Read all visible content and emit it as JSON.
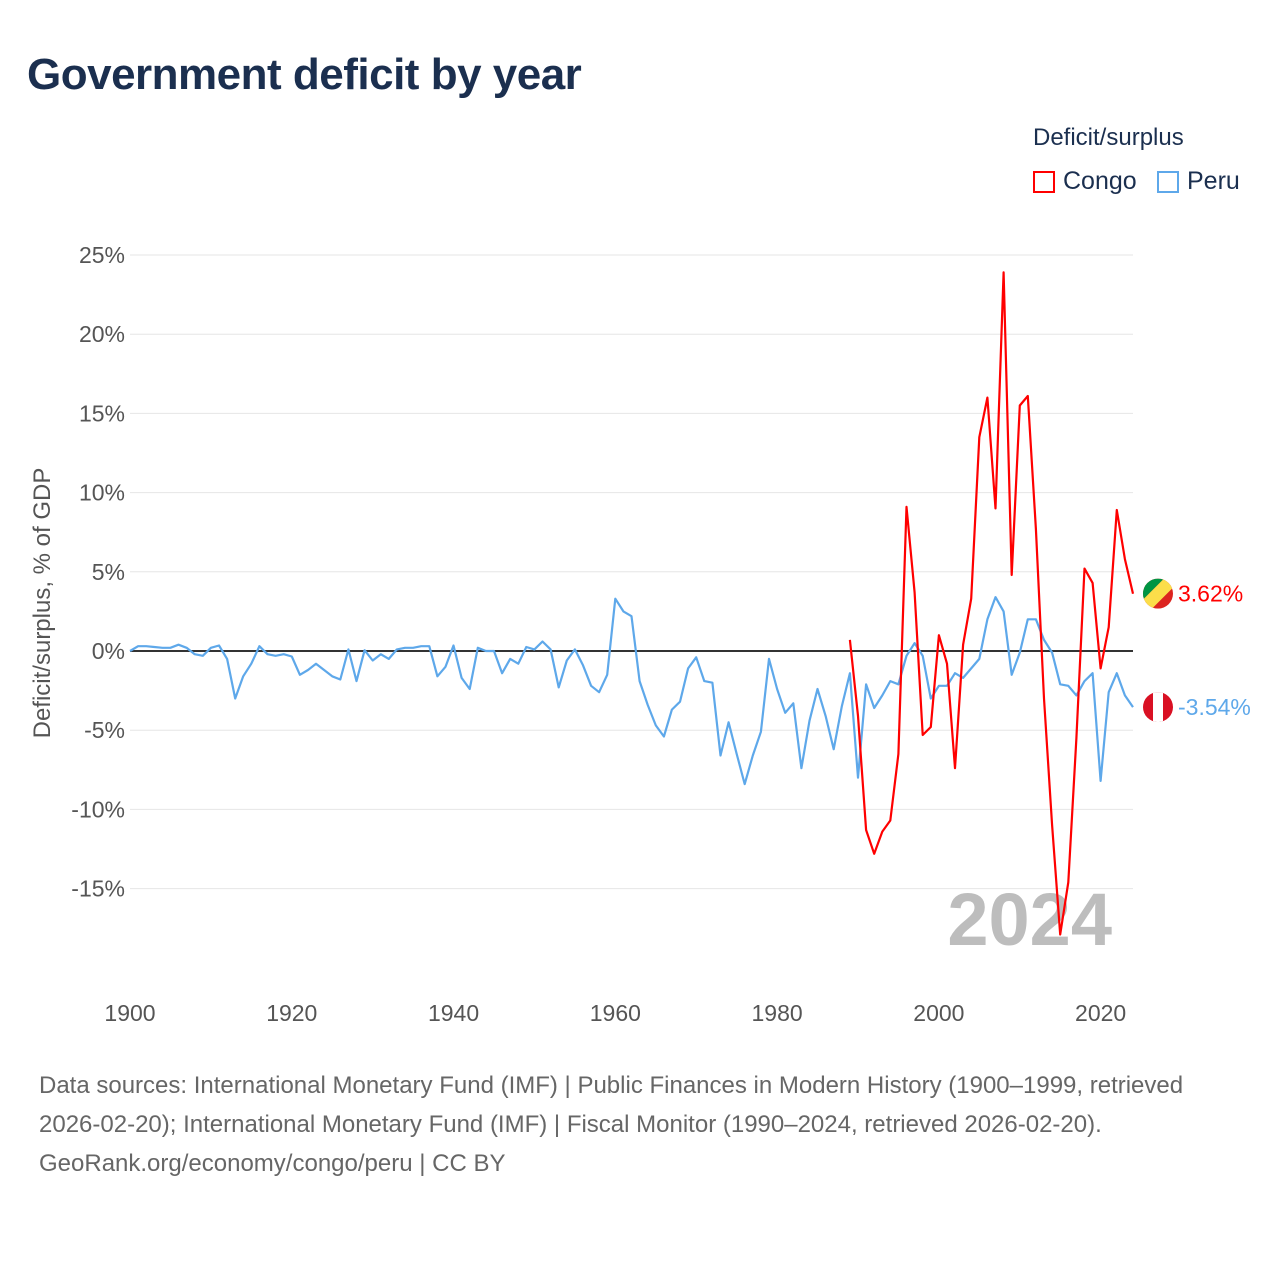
{
  "title": "Government deficit by year",
  "legend": {
    "title": "Deficit/surplus",
    "items": [
      {
        "label": "Congo",
        "color": "#ff0000"
      },
      {
        "label": "Peru",
        "color": "#5ea8ea"
      }
    ]
  },
  "footer": {
    "sources": "Data sources: International Monetary Fund (IMF) | Public Finances in Modern History (1900–1999, retrieved 2026-02-20); International Monetary Fund (IMF) | Fiscal Monitor (1990–2024, retrieved 2026-02-20).",
    "credit": "GeoRank.org/economy/congo/peru | CC BY"
  },
  "chart_data": {
    "type": "line",
    "title": "Government deficit by year",
    "xlabel": "",
    "ylabel": "Deficit/surplus, % of GDP",
    "xlim": [
      1900,
      2024
    ],
    "ylim": [
      -20,
      25
    ],
    "x_ticks": [
      {
        "value": 1900,
        "label": "1900"
      },
      {
        "value": 1920,
        "label": "1920"
      },
      {
        "value": 1940,
        "label": "1940"
      },
      {
        "value": 1960,
        "label": "1960"
      },
      {
        "value": 1980,
        "label": "1980"
      },
      {
        "value": 2000,
        "label": "2000"
      },
      {
        "value": 2020,
        "label": "2020"
      }
    ],
    "y_ticks": [
      {
        "value": 25,
        "label": "25%"
      },
      {
        "value": 20,
        "label": "20%"
      },
      {
        "value": 15,
        "label": "15%"
      },
      {
        "value": 10,
        "label": "10%"
      },
      {
        "value": 5,
        "label": "5%"
      },
      {
        "value": 0,
        "label": "0%"
      },
      {
        "value": -5,
        "label": "-5%"
      },
      {
        "value": -10,
        "label": "-10%"
      },
      {
        "value": -15,
        "label": "-15%"
      }
    ],
    "grid": true,
    "legend_position": "top-right",
    "year_watermark": "2024",
    "series": [
      {
        "name": "Congo",
        "color": "#ff0000",
        "start_year": 1989,
        "end_label": "3.62%",
        "values": [
          0.7,
          -4.1,
          -11.3,
          -12.8,
          -11.4,
          -10.7,
          -6.5,
          9.1,
          3.7,
          -5.3,
          -4.8,
          1.0,
          -0.8,
          -7.4,
          0.4,
          3.3,
          13.5,
          16.0,
          9.0,
          23.9,
          4.8,
          15.5,
          16.1,
          7.7,
          -3.0,
          -11.0,
          -17.9,
          -14.6,
          -5.5,
          5.2,
          4.3,
          -1.1,
          1.5,
          8.9,
          5.8,
          3.62
        ]
      },
      {
        "name": "Peru",
        "color": "#5ea8ea",
        "start_year": 1900,
        "end_label": "-3.54%",
        "values": [
          0,
          0.3,
          0.3,
          0.25,
          0.2,
          0.2,
          0.4,
          0.2,
          -0.2,
          -0.3,
          0.2,
          0.35,
          -0.5,
          -3.0,
          -1.6,
          -0.8,
          0.3,
          -0.2,
          -0.3,
          -0.2,
          -0.35,
          -1.5,
          -1.2,
          -0.8,
          -1.2,
          -1.6,
          -1.8,
          0.1,
          -1.9,
          0.05,
          -0.6,
          -0.2,
          -0.5,
          0.1,
          0.2,
          0.2,
          0.3,
          0.3,
          -1.6,
          -1.0,
          0.35,
          -1.7,
          -2.4,
          0.2,
          0,
          0,
          -1.4,
          -0.5,
          -0.8,
          0.25,
          0.1,
          0.6,
          0.1,
          -2.3,
          -0.6,
          0.1,
          -0.9,
          -2.2,
          -2.6,
          -1.5,
          3.3,
          2.5,
          2.2,
          -1.9,
          -3.4,
          -4.7,
          -5.4,
          -3.7,
          -3.2,
          -1.1,
          -0.4,
          -1.9,
          -2.0,
          -6.6,
          -4.5,
          -6.5,
          -8.4,
          -6.6,
          -5.1,
          -0.5,
          -2.4,
          -3.9,
          -3.3,
          -7.4,
          -4.4,
          -2.4,
          -4.1,
          -6.2,
          -3.5,
          -1.4,
          -8.0,
          -2.1,
          -3.6,
          -2.8,
          -1.9,
          -2.1,
          -0.3,
          0.5,
          -0.3,
          -3.0,
          -2.2,
          -2.2,
          -1.4,
          -1.7,
          -1.1,
          -0.5,
          2.0,
          3.4,
          2.5,
          -1.5,
          -0.1,
          2.0,
          2.0,
          0.7,
          -0.1,
          -2.1,
          -2.2,
          -2.8,
          -1.9,
          -1.4,
          -8.2,
          -2.6,
          -1.4,
          -2.8,
          -3.54
        ]
      }
    ]
  }
}
